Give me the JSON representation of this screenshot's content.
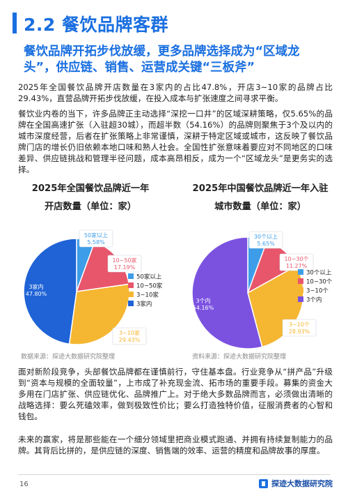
{
  "section": {
    "title": "2.2 餐饮品牌客群"
  },
  "subhead": "餐饮品牌开拓步伐放缓，更多品牌选择成为“区域龙头”，供应链、销售、运营成关键“三板斧”",
  "paragraphs": {
    "p1": "2025年全国餐饮品牌开店数量在3家内的占比47.8%，开店3~10家的品牌占比29.43%，直营品牌开拓步伐放缓，在投入成本与扩张速度之间寻求平衡。",
    "p2": "餐饮业内卷的当下，许多品牌正主动选择“深挖一口井”的区域深耕策略，仅5.65%的品牌在全国高速扩张（入驻超30城），而超半数（54.16%）的品牌则聚焦于3个及以内的城市深度经营，后者在扩张策略上非常谨慎，深耕于特定区域或城市，这反映了餐饮品牌门店的增长仍旧依赖本地口味和熟人社会。全国性扩张意味着要应对不同地区的口味差异、供应链挑战和管理半径问题，成本高昂相反，成为一个“区域龙头”是更务实的选择。",
    "p3": "面对新阶段竞争，头部餐饮品牌都在谨慎前行，守住基本盘。行业竞争从“拼产品”升级到“资本与规模的全面较量”，上市成了补充现金流、拓市场的重要手段。募集的资金大多用在门店扩张、供应链优化、品牌推广上。对于绝大多数品牌而言，必须做出清晰的战略选择：要么死磕效率，做到极致性价比；要么打造独特价值，征服消费者的心智和钱包。",
    "p4": "未来的赢家，将是那些能在一个细分领域里把商业模式跑通、并拥有持续复制能力的品牌。其背后比拼的，是供应链的深度、销售端的效率、运营的精度和品牌故事的厚度。"
  },
  "chart_data": [
    {
      "type": "pie",
      "title_lines": [
        "2025年全国餐饮品牌近一年",
        "开店数量（单位：家）"
      ],
      "categories": [
        "50家以上",
        "10~50家",
        "3~10家",
        "3家内"
      ],
      "values": [
        5.58,
        17.19,
        29.43,
        47.8
      ],
      "labels": [
        [
          "50家以上",
          "5.58%"
        ],
        [
          "10~50家",
          "17.19%"
        ],
        [
          "3~10家",
          "29.43%"
        ],
        [
          "3家内",
          "47.80%"
        ]
      ],
      "legend": [
        "50家以上",
        "10~50家",
        "3~10家",
        "3家内"
      ],
      "legend_placement": "right",
      "colors": [
        "#3d9de8",
        "#e8566b",
        "#f5b632",
        "#1f63d6"
      ],
      "source": "数据来源：探迹大数据研究院整理"
    },
    {
      "type": "pie",
      "title_lines": [
        "2025年中国餐饮品牌近一年入驻",
        "城市数量（单位：家）"
      ],
      "categories": [
        "30个以上",
        "10~30个",
        "3~10个",
        "3个内"
      ],
      "values": [
        5.65,
        11.27,
        28.93,
        54.16
      ],
      "labels": [
        [
          "30个以上",
          "5.65%"
        ],
        [
          "10~30个",
          "11.27%"
        ],
        [
          "3~10个",
          "28.93%"
        ],
        [
          "3个内",
          "54.16%"
        ]
      ],
      "legend": [
        "30个以上",
        "10~30个",
        "3~10个",
        "3个内"
      ],
      "legend_placement": "right",
      "colors": [
        "#3d9de8",
        "#e8566b",
        "#f5b632",
        "#7b52e0"
      ],
      "source": "资料来源：探迹大数据研究院整理"
    }
  ],
  "footer": {
    "page_number": "16",
    "brand": "探迹大数据研究院"
  }
}
